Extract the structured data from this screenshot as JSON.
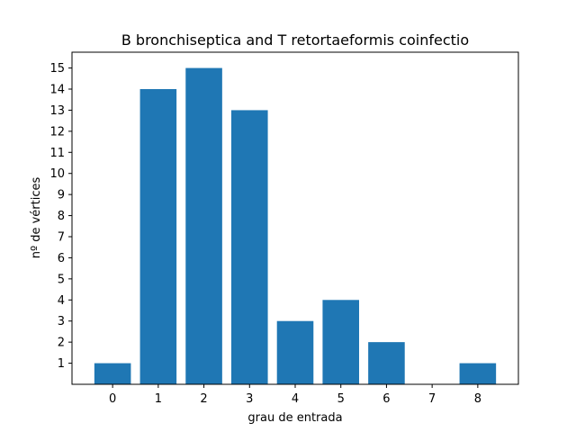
{
  "chart_data": {
    "type": "bar",
    "title": "B bronchiseptica and T retortaeformis coinfectio",
    "xlabel": "grau de entrada",
    "ylabel": "nº de vértices",
    "categories": [
      "0",
      "1",
      "2",
      "3",
      "4",
      "5",
      "6",
      "7",
      "8"
    ],
    "values": [
      1,
      14,
      15,
      13,
      3,
      4,
      2,
      0,
      1
    ],
    "y_ticks": [
      "1",
      "2",
      "3",
      "4",
      "5",
      "6",
      "7",
      "8",
      "9",
      "10",
      "11",
      "12",
      "13",
      "14",
      "15"
    ],
    "ylim": [
      0,
      15.75
    ],
    "xlim": [
      -0.89,
      8.89
    ],
    "grid": false,
    "legend": "none",
    "bar_color": "#1f77b4"
  }
}
